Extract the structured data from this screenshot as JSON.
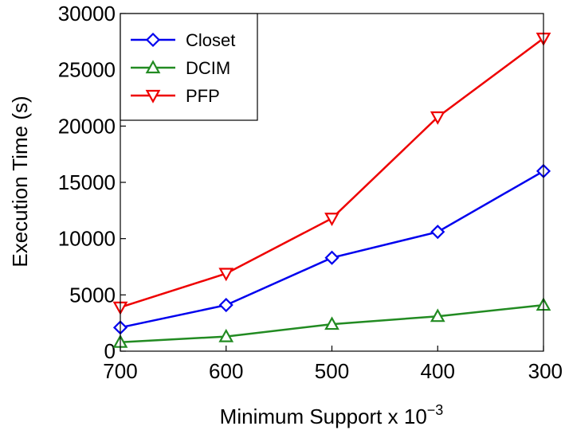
{
  "chart_data": {
    "type": "line",
    "xlabel": "Minimum  Support  x  10",
    "xlabel_superscript": "−3",
    "ylabel": "Execution Time (s)",
    "x": [
      700,
      600,
      500,
      400,
      300
    ],
    "x_tick_labels": [
      "700",
      "600",
      "500",
      "400",
      "300"
    ],
    "xlim": [
      700,
      300
    ],
    "ylim": [
      0,
      30000
    ],
    "y_ticks": [
      0,
      5000,
      10000,
      15000,
      20000,
      25000,
      30000
    ],
    "y_tick_labels": [
      "0",
      "5000",
      "10000",
      "15000",
      "20000",
      "25000",
      "30000"
    ],
    "grid": false,
    "legend_position": "top-left",
    "series": [
      {
        "name": "Closet",
        "color": "#0000ee",
        "marker": "diamond",
        "values": [
          2100,
          4100,
          8300,
          10600,
          16000
        ]
      },
      {
        "name": "DCIM",
        "color": "#228b22",
        "marker": "triangle-up",
        "values": [
          800,
          1300,
          2400,
          3100,
          4100
        ]
      },
      {
        "name": "PFP",
        "color": "#ee0000",
        "marker": "triangle-down",
        "values": [
          3900,
          6900,
          11800,
          20800,
          27800
        ]
      }
    ]
  }
}
